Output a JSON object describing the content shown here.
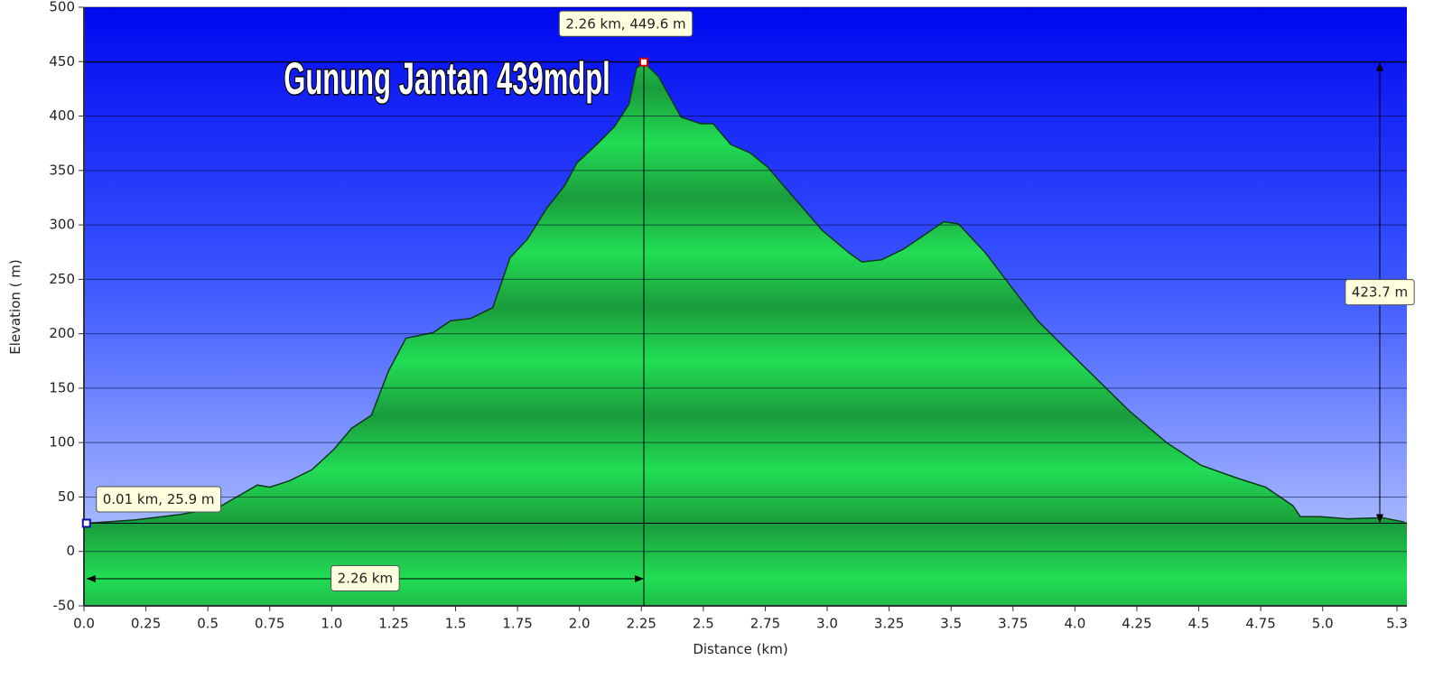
{
  "chart_data": {
    "type": "area",
    "title": "Gunung Jantan 439mdpl",
    "x_label": "Distance  (km)",
    "y_label": "Elevation ( m)",
    "x": [
      0.01,
      0.21,
      0.39,
      0.54,
      0.7,
      0.75,
      0.83,
      0.92,
      1.01,
      1.08,
      1.16,
      1.23,
      1.3,
      1.41,
      1.48,
      1.56,
      1.65,
      1.72,
      1.79,
      1.87,
      1.94,
      1.99,
      2.07,
      2.14,
      2.2,
      2.23,
      2.26,
      2.32,
      2.41,
      2.49,
      2.54,
      2.61,
      2.69,
      2.76,
      2.87,
      2.98,
      3.09,
      3.14,
      3.22,
      3.31,
      3.4,
      3.47,
      3.53,
      3.64,
      3.75,
      3.85,
      3.96,
      4.09,
      4.22,
      4.37,
      4.51,
      4.66,
      4.77,
      4.88,
      4.91,
      4.99,
      5.1,
      5.24,
      5.33
    ],
    "values": [
      25.9,
      29,
      34,
      40,
      61,
      59,
      65,
      75,
      94,
      113,
      125,
      166,
      196,
      201,
      212,
      214,
      224,
      270,
      287,
      316,
      336,
      357,
      374,
      390,
      411,
      444,
      449.6,
      436,
      399,
      393,
      393,
      374,
      366,
      353,
      324,
      295,
      274,
      266,
      268,
      278,
      292,
      303,
      301,
      274,
      241,
      212,
      187,
      158,
      129,
      100,
      79,
      67,
      59,
      42,
      32,
      32,
      30,
      31,
      27
    ],
    "color": "#22dd55",
    "xlim": [
      0,
      5.34
    ],
    "ylim": [
      -50,
      500
    ],
    "xticks": [
      {
        "value": 0,
        "label": "0.0"
      },
      0.25,
      0.5,
      0.75,
      {
        "value": 1,
        "label": "1.0"
      },
      1.25,
      1.5,
      1.75,
      {
        "value": 2,
        "label": "2.0"
      },
      2.25,
      2.5,
      2.75,
      {
        "value": 3,
        "label": "3.0"
      },
      3.25,
      3.5,
      3.75,
      {
        "value": 4,
        "label": "4.0"
      },
      4.25,
      4.5,
      4.75,
      {
        "value": 5,
        "label": "5.0"
      },
      5.3
    ],
    "yticks": [
      -50,
      0,
      50,
      100,
      150,
      200,
      250,
      300,
      350,
      400,
      450,
      500
    ],
    "grid": true,
    "markers": [
      {
        "x": 0.01,
        "y": 25.9,
        "label": "0.01 km, 25.9 m"
      },
      {
        "x": 2.26,
        "y": 449.6,
        "label": "2.26 km, 449.6 m"
      }
    ],
    "distance_label": "2.26 km",
    "climb_label": "423.7 m"
  }
}
